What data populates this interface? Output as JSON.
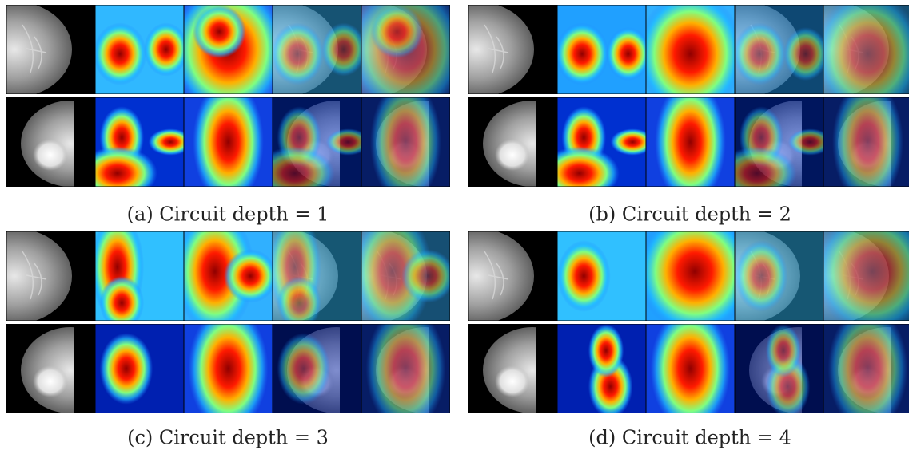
{
  "figure": {
    "panels": [
      {
        "caption": "(a) Circuit depth = 1"
      },
      {
        "caption": "(b) Circuit depth = 2"
      },
      {
        "caption": "(c) Circuit depth = 3"
      },
      {
        "caption": "(d) Circuit depth = 4"
      }
    ]
  }
}
